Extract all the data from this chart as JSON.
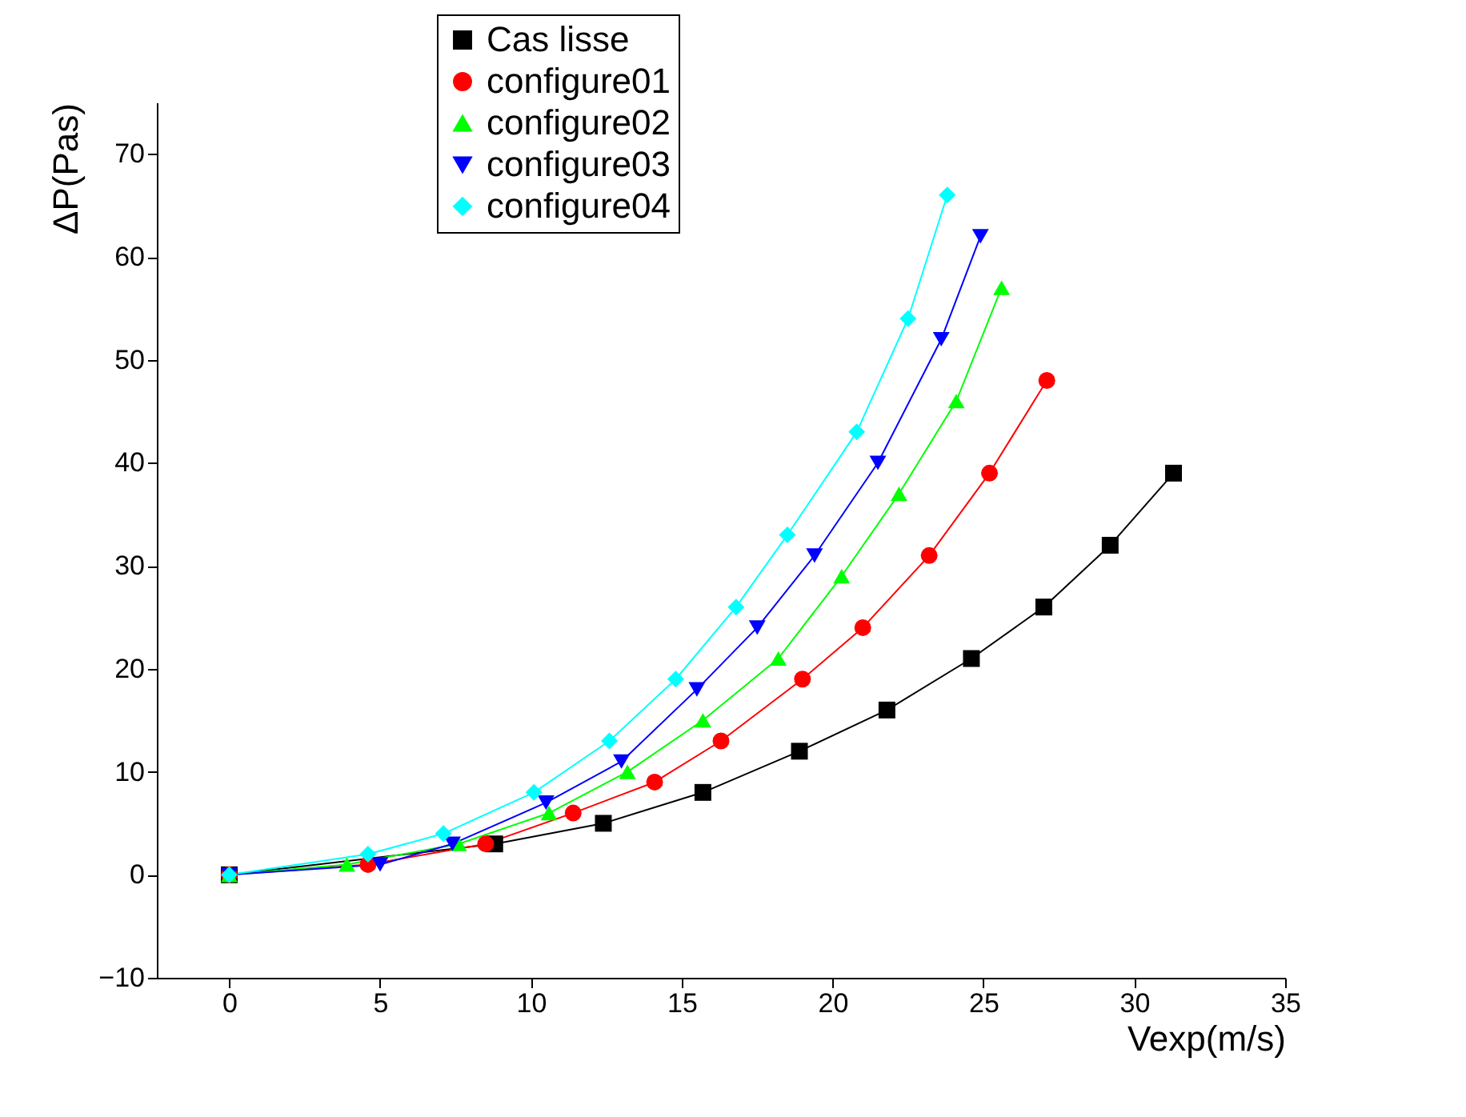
{
  "chart_data": {
    "type": "line",
    "xlabel": "Vexp(m/s)",
    "ylabel": "ΔP(Pas)",
    "xlim": [
      -2.4,
      35
    ],
    "ylim": [
      -10,
      75
    ],
    "xticks": [
      0,
      5,
      10,
      15,
      20,
      25,
      30,
      35
    ],
    "yticks": [
      -10,
      0,
      10,
      20,
      30,
      40,
      50,
      60,
      70
    ],
    "grid": false,
    "legend": "top left",
    "line_style": "solid",
    "series": [
      {
        "name": "Cas lisse",
        "color": "#000000",
        "marker": "square",
        "x": [
          0,
          8.8,
          12.4,
          15.7,
          18.9,
          21.8,
          24.6,
          27.0,
          29.2,
          31.3
        ],
        "values": [
          0,
          3,
          5,
          8,
          12,
          16,
          21,
          26,
          32,
          39
        ]
      },
      {
        "name": "configure01",
        "color": "#ff0000",
        "marker": "circle",
        "x": [
          0,
          4.6,
          8.5,
          11.4,
          14.1,
          16.3,
          19.0,
          21.0,
          23.2,
          25.2,
          27.1
        ],
        "values": [
          0,
          1,
          3,
          6,
          9,
          13,
          19,
          24,
          31,
          39,
          48
        ]
      },
      {
        "name": "configure02",
        "color": "#00ff00",
        "marker": "triangle",
        "x": [
          0,
          3.9,
          7.6,
          10.6,
          13.2,
          15.7,
          18.2,
          20.3,
          22.2,
          24.1,
          25.6
        ],
        "values": [
          0,
          1,
          3,
          6,
          10,
          15,
          21,
          29,
          37,
          46,
          57
        ]
      },
      {
        "name": "configure03",
        "color": "#0000ff",
        "marker": "triangle-down",
        "x": [
          0,
          5.0,
          7.4,
          10.5,
          13.0,
          15.5,
          17.5,
          19.4,
          21.5,
          23.6,
          24.9
        ],
        "values": [
          0,
          1,
          3,
          7,
          11,
          18,
          24,
          31,
          40,
          52,
          62
        ]
      },
      {
        "name": "configure04",
        "color": "#00ffff",
        "marker": "diamond",
        "x": [
          0,
          4.6,
          7.1,
          10.1,
          12.6,
          14.8,
          16.8,
          18.5,
          20.8,
          22.5,
          23.8
        ],
        "values": [
          0,
          2,
          4,
          8,
          13,
          19,
          26,
          33,
          43,
          54,
          66
        ]
      }
    ]
  }
}
